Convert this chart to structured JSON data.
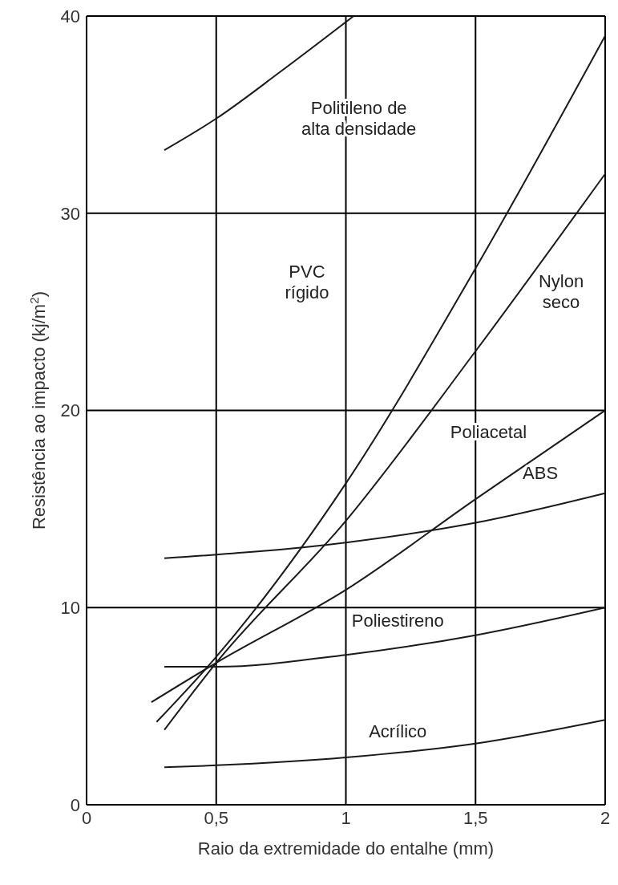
{
  "chart_data": {
    "type": "line",
    "xlabel": "Raio da extremidade do entalhe (mm)",
    "ylabel": "Resistência ao impacto (kj/m$^{2}$)",
    "xlim": [
      0,
      2
    ],
    "xticks": [
      0,
      {
        "value": 0.5,
        "label": "0,5"
      },
      1,
      {
        "value": 1.5,
        "label": "1,5"
      },
      2
    ],
    "ylim": [
      0,
      40
    ],
    "yticks": [
      0,
      10,
      20,
      30,
      40
    ],
    "grid": true,
    "marker": "none",
    "line_style": "solid",
    "series": [
      {
        "color": "#1a1a1a",
        "x": [
          0.3,
          0.5,
          0.75,
          1.03
        ],
        "values": [
          33.2,
          34.8,
          37.2,
          40
        ]
      },
      {
        "color": "#1a1a1a",
        "x": [
          0.27,
          0.5,
          1,
          1.5,
          2
        ],
        "values": [
          4.2,
          7.5,
          16.3,
          27.2,
          39
        ]
      },
      {
        "color": "#1a1a1a",
        "x": [
          0.3,
          0.5,
          1,
          1.5,
          2
        ],
        "values": [
          3.8,
          7.2,
          14.4,
          23,
          32
        ]
      },
      {
        "color": "#1a1a1a",
        "x": [
          0.25,
          0.5,
          1,
          1.5,
          2
        ],
        "values": [
          5.2,
          7.2,
          10.9,
          15.5,
          20
        ]
      },
      {
        "color": "#1a1a1a",
        "x": [
          0.3,
          1,
          1.5,
          2
        ],
        "values": [
          12.5,
          13.3,
          14.3,
          15.8
        ]
      },
      {
        "color": "#1a1a1a",
        "x": [
          0.3,
          0.5,
          1,
          1.5,
          2
        ],
        "values": [
          7,
          7,
          7.6,
          8.6,
          10
        ]
      },
      {
        "color": "#1a1a1a",
        "x": [
          0.3,
          0.5,
          1,
          1.5,
          2
        ],
        "values": [
          1.9,
          2,
          2.4,
          3.1,
          4.3
        ]
      }
    ],
    "annotations": [
      "Politileno de\nalta densidade",
      "PVC\nrígido",
      "Nylon\nseco",
      "Poliacetal",
      "ABS",
      "Poliestireno",
      "Acrílico"
    ]
  }
}
